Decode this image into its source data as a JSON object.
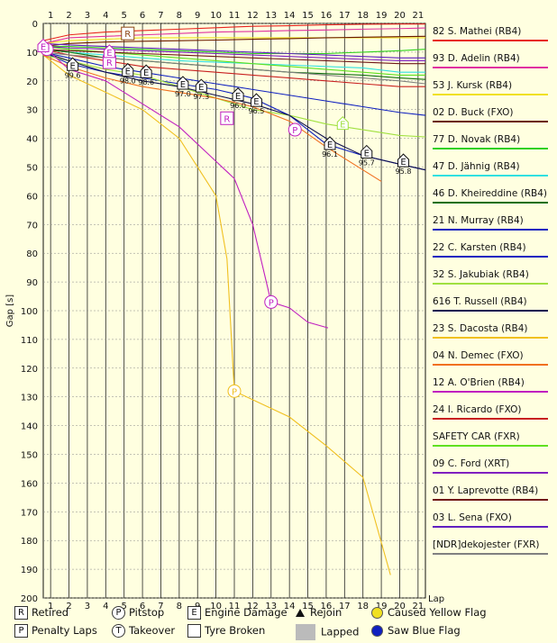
{
  "chart_data": {
    "type": "line",
    "title": "",
    "xlabel": "Lap",
    "ylabel": "Gap [s]",
    "xlim": [
      0.6,
      21.4
    ],
    "ylim": [
      0,
      200
    ],
    "x_ticks": [
      1,
      2,
      3,
      4,
      5,
      6,
      7,
      8,
      9,
      10,
      11,
      12,
      13,
      14,
      15,
      16,
      17,
      18,
      19,
      20,
      21
    ],
    "y_ticks": [
      0,
      10,
      20,
      30,
      40,
      50,
      60,
      70,
      80,
      90,
      100,
      110,
      120,
      130,
      140,
      150,
      160,
      170,
      180,
      190,
      200
    ],
    "y_tick_labels": [
      "0",
      "10",
      "20",
      "30",
      "40",
      "50",
      "60",
      "70",
      "80",
      "90",
      "100",
      "110",
      "120",
      "130",
      "140",
      "150",
      "160",
      "170",
      "180",
      "190",
      "200"
    ],
    "grid": true,
    "legend_position": "right",
    "series": [
      {
        "name": "82 S. Mathei (RB4)",
        "color": "#e8231e",
        "x": [
          0.6,
          2,
          4,
          6,
          8,
          10,
          12,
          14,
          16,
          18,
          20,
          21.4
        ],
        "values": [
          6,
          4,
          3,
          2.5,
          2,
          1.5,
          1,
          0.8,
          0.5,
          0.3,
          0.2,
          0.2
        ]
      },
      {
        "name": "93 D. Adelin (RB4)",
        "color": "#e030a0",
        "x": [
          0.6,
          2,
          4,
          6,
          8,
          10,
          12,
          14,
          16,
          18,
          20,
          21.4
        ],
        "values": [
          7,
          5,
          4.5,
          4,
          3.5,
          3,
          2.8,
          2.5,
          2.3,
          2,
          1.8,
          1.6
        ]
      },
      {
        "name": "53 J. Kursk (RB4)",
        "color": "#f0e020",
        "x": [
          0.6,
          2,
          4,
          6,
          8,
          10,
          12,
          14,
          16,
          18,
          20,
          21.4
        ],
        "values": [
          7,
          6,
          5.5,
          5,
          5,
          5,
          5,
          5,
          5,
          5,
          5,
          5
        ]
      },
      {
        "name": "02 D. Buck (FXO)",
        "color": "#6b1a00",
        "x": [
          0.6,
          2,
          4,
          6,
          8,
          10,
          12,
          14,
          16,
          18,
          20,
          21.4
        ],
        "values": [
          8,
          7,
          6.5,
          6.2,
          6,
          5.8,
          5.5,
          5.3,
          5,
          4.8,
          4.6,
          4.5
        ]
      },
      {
        "name": "77 D. Novak (RB4)",
        "color": "#30d020",
        "x": [
          0.6,
          2,
          4,
          6,
          8,
          10,
          12,
          14,
          16,
          18,
          20,
          21.4
        ],
        "values": [
          8,
          8,
          8.5,
          9,
          9.5,
          10,
          10.5,
          10.5,
          10.5,
          10,
          9.5,
          9
        ]
      },
      {
        "name": "47 D. Jähnig (RB4)",
        "color": "#30e0e0",
        "x": [
          0.6,
          2,
          4,
          6,
          8,
          10,
          12,
          14,
          16,
          18,
          20,
          21.4
        ],
        "values": [
          9,
          10,
          11,
          12,
          13,
          13.5,
          14,
          14.5,
          15,
          15.5,
          17,
          17
        ]
      },
      {
        "name": "46 D. Kheireddine (RB4)",
        "color": "#107010",
        "x": [
          0.6,
          2,
          4,
          6,
          8,
          10,
          12,
          14,
          16,
          18,
          20,
          21.4
        ],
        "values": [
          9,
          10,
          12,
          13,
          14,
          15,
          16,
          17,
          17.5,
          18,
          19,
          19.5
        ]
      },
      {
        "name": "21 N. Murray (RB4)",
        "color": "#1020c0",
        "x": [
          0.6,
          2,
          4,
          6,
          8,
          10,
          12,
          14,
          16,
          18,
          20,
          21.4
        ],
        "values": [
          10,
          12,
          15,
          17,
          19,
          21,
          23,
          25,
          27,
          29,
          31,
          32
        ]
      },
      {
        "name": "22 C. Karsten (RB4)",
        "color": "#1020c0",
        "x": [
          0.6,
          2,
          4,
          6,
          8,
          10,
          12,
          14,
          16,
          18,
          20,
          21.4
        ],
        "values": [
          10,
          14,
          17,
          19,
          21,
          23,
          26,
          32,
          42,
          46,
          49,
          51
        ]
      },
      {
        "name": "32 S. Jakubiak (RB4)",
        "color": "#a0e040",
        "x": [
          0.6,
          2,
          4,
          6,
          8,
          10,
          12,
          14,
          16,
          18,
          20,
          21.4
        ],
        "values": [
          11,
          13,
          16,
          18,
          22,
          26,
          30,
          32,
          35,
          37,
          39,
          39.5
        ]
      },
      {
        "name": "616 T. Russell (RB4)",
        "color": "#101050",
        "x": [
          0.6,
          2,
          4,
          6,
          8,
          10,
          12,
          14,
          16,
          18,
          20,
          21.4
        ],
        "values": [
          10,
          13,
          17,
          20,
          22,
          25,
          28,
          32,
          40,
          46,
          49,
          51
        ]
      },
      {
        "name": "23 S. Dacosta (RB4)",
        "color": "#f0c020",
        "x": [
          0.6,
          2,
          4,
          6,
          8,
          10,
          10.6,
          11,
          12,
          14,
          16,
          18,
          19.5
        ],
        "values": [
          11,
          18,
          24,
          30,
          40,
          60,
          82,
          128,
          131,
          137,
          147,
          158,
          192
        ]
      },
      {
        "name": "04 N. Demec (FXO)",
        "color": "#f07020",
        "x": [
          0.6,
          2,
          4,
          6,
          8,
          10,
          12,
          14,
          16,
          18,
          19
        ],
        "values": [
          11,
          15,
          19,
          22,
          24,
          26,
          29,
          34,
          43,
          51,
          55
        ]
      },
      {
        "name": "12 A. O'Brien (RB4)",
        "color": "#c020c0",
        "x": [
          0.6,
          2,
          4,
          6,
          8,
          10,
          11,
          12,
          13,
          14,
          15,
          16.1
        ],
        "values": [
          8,
          16,
          20,
          28,
          36,
          48,
          54,
          70,
          97,
          99,
          104,
          106
        ]
      },
      {
        "name": "24 I. Ricardo (FXO)",
        "color": "#c82020",
        "x": [
          0.6,
          2,
          4,
          6,
          8,
          10,
          12,
          14,
          16,
          18,
          20,
          21.4
        ],
        "values": [
          9,
          11,
          13,
          15,
          16,
          17,
          18,
          19,
          20,
          21,
          22,
          22
        ]
      },
      {
        "name": "SAFETY CAR (FXR)",
        "color": "#60e020",
        "x": [
          0.6,
          2,
          4,
          6,
          8,
          10,
          12,
          14,
          16,
          18,
          20,
          21.4
        ],
        "values": [
          8,
          9,
          10,
          11,
          12,
          13,
          14,
          15,
          16,
          17,
          18,
          18
        ]
      },
      {
        "name": "09 C. Ford (XRT)",
        "color": "#8020c0",
        "x": [
          0.6,
          2,
          4,
          6,
          8,
          10,
          12,
          14,
          16,
          18,
          20,
          21.4
        ],
        "values": [
          8,
          8.5,
          9,
          9.5,
          10,
          10.5,
          11,
          11.5,
          12,
          12.5,
          13,
          13
        ]
      },
      {
        "name": "01 Y. Laprevotte (RB4)",
        "color": "#701818",
        "x": [
          0.6,
          2,
          4,
          6,
          8,
          10,
          12,
          14,
          16,
          18,
          20,
          21.4
        ],
        "values": [
          9,
          9.5,
          10,
          10.5,
          11,
          11.5,
          12,
          12.5,
          13,
          13.5,
          14,
          14
        ]
      },
      {
        "name": "03 L. Sena (FXO)",
        "color": "#6020c0",
        "x": [
          0.6,
          2,
          4,
          6,
          8,
          10,
          12,
          14,
          16,
          18,
          20,
          21.4
        ],
        "values": [
          7,
          7.5,
          8,
          8.5,
          9,
          9.5,
          10,
          10.5,
          11,
          11.5,
          12,
          12
        ]
      },
      {
        "name": "[NDR]dekojester (FXR)",
        "color": "#808080",
        "x": [
          0.6,
          2,
          4,
          6,
          8,
          10,
          12,
          14,
          16,
          18,
          20,
          21.4
        ],
        "values": [
          10,
          11,
          12,
          13,
          14,
          15,
          16,
          17,
          18,
          19,
          20,
          21
        ]
      }
    ],
    "markers": [
      {
        "type": "R",
        "lap": 5.2,
        "value": 3.5,
        "color": "#8b4513"
      },
      {
        "type": "R",
        "lap": 4.2,
        "value": 13.5,
        "color": "#c020c0"
      },
      {
        "type": "R",
        "lap": 10.6,
        "value": 33,
        "color": "#c020c0"
      },
      {
        "type": "E",
        "lap": 4.2,
        "value": 10,
        "color": "#c020c0"
      },
      {
        "type": "P",
        "lap": 0.8,
        "value": 9,
        "color": "#c020c0"
      },
      {
        "type": "P",
        "lap": 14.3,
        "value": 37,
        "color": "#c020c0"
      },
      {
        "type": "P",
        "lap": 13,
        "value": 97,
        "color": "#c020c0"
      },
      {
        "type": "P",
        "lap": 11,
        "value": 128,
        "color": "#f0c020"
      },
      {
        "type": "E",
        "lap": 16.9,
        "value": 35,
        "color": "#a0e040"
      },
      {
        "type": "E",
        "lap": 2.2,
        "value": 14.5,
        "color": "#111",
        "label": "99.6"
      },
      {
        "type": "E",
        "lap": 5.2,
        "value": 16.5,
        "color": "#111",
        "label": "98.0"
      },
      {
        "type": "E",
        "lap": 6.2,
        "value": 17,
        "color": "#111",
        "label": "98.6"
      },
      {
        "type": "E",
        "lap": 8.2,
        "value": 21,
        "color": "#111",
        "label": "97.0"
      },
      {
        "type": "E",
        "lap": 9.2,
        "value": 22,
        "color": "#111",
        "label": "97.3"
      },
      {
        "type": "E",
        "lap": 11.2,
        "value": 25,
        "color": "#111",
        "label": "96.0"
      },
      {
        "type": "E",
        "lap": 12.2,
        "value": 27,
        "color": "#111",
        "label": "96.5"
      },
      {
        "type": "E",
        "lap": 16.2,
        "value": 42,
        "color": "#111",
        "label": "96.1"
      },
      {
        "type": "E",
        "lap": 18.2,
        "value": 45,
        "color": "#111",
        "label": "95.7"
      },
      {
        "type": "E",
        "lap": 20.2,
        "value": 48,
        "color": "#111",
        "label": "95.8"
      },
      {
        "type": "E",
        "lap": 0.6,
        "value": 8,
        "color": "#c020c0"
      }
    ],
    "key": [
      {
        "glyph": "R",
        "style": "box",
        "label": "Retired"
      },
      {
        "glyph": "P",
        "style": "circle",
        "label": "Pitstop"
      },
      {
        "glyph": "E",
        "style": "box",
        "label": "Engine Damage"
      },
      {
        "glyph": "",
        "style": "triangle",
        "label": "Rejoin"
      },
      {
        "glyph": "",
        "style": "yellow-dot",
        "label": "Caused Yellow Flag"
      },
      {
        "glyph": "P",
        "style": "box",
        "label": "Penalty Laps"
      },
      {
        "glyph": "T",
        "style": "circle",
        "label": "Takeover"
      },
      {
        "glyph": "",
        "style": "box",
        "label": "Tyre Broken"
      },
      {
        "glyph": "",
        "style": "gray",
        "label": "Lapped"
      },
      {
        "glyph": "",
        "style": "blue-dot",
        "label": "Saw Blue Flag"
      }
    ]
  }
}
